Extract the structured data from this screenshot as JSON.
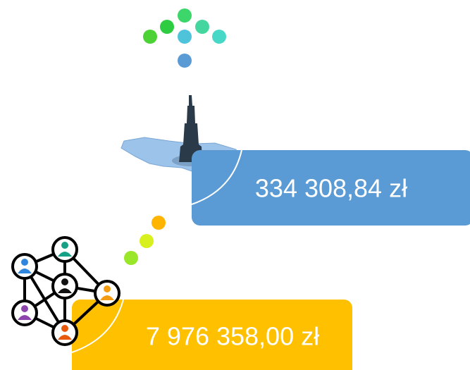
{
  "boxes": [
    {
      "text": "334 308,84 zł"
    },
    {
      "text": "7 976 358,00 zł"
    }
  ]
}
